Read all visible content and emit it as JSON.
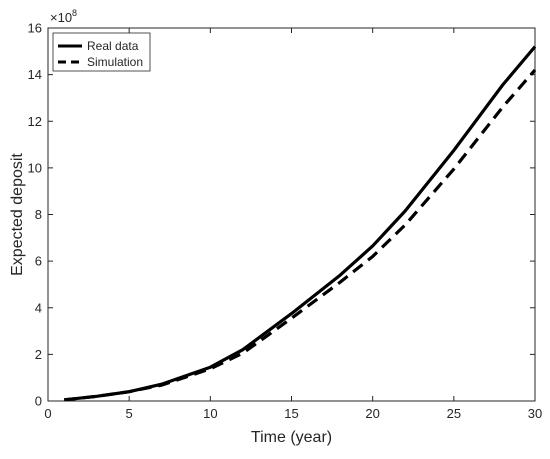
{
  "chart_data": {
    "type": "line",
    "xlabel": "Time (year)",
    "ylabel": "Expected deposit",
    "exponent_label": "×10",
    "exponent_power": "8",
    "xlim": [
      0,
      30
    ],
    "ylim": [
      0,
      16
    ],
    "x_ticks": [
      0,
      5,
      10,
      15,
      20,
      25,
      30
    ],
    "y_ticks": [
      0,
      2,
      4,
      6,
      8,
      10,
      12,
      14,
      16
    ],
    "grid": false,
    "legend_position": "top-left",
    "series": [
      {
        "name": "Real data",
        "style": "solid",
        "color": "#000000",
        "x": [
          1,
          3,
          5,
          7,
          10,
          12,
          15,
          18,
          20,
          22,
          25,
          28,
          30
        ],
        "y": [
          0.05,
          0.2,
          0.4,
          0.72,
          1.45,
          2.2,
          3.75,
          5.4,
          6.65,
          8.15,
          10.75,
          13.55,
          15.2
        ]
      },
      {
        "name": "Simulation",
        "style": "dashed",
        "color": "#000000",
        "x": [
          1,
          3,
          5,
          7,
          10,
          12,
          15,
          18,
          20,
          22,
          25,
          28,
          30
        ],
        "y": [
          0.05,
          0.2,
          0.4,
          0.68,
          1.38,
          2.05,
          3.55,
          5.1,
          6.2,
          7.55,
          9.95,
          12.6,
          14.2
        ]
      }
    ]
  }
}
